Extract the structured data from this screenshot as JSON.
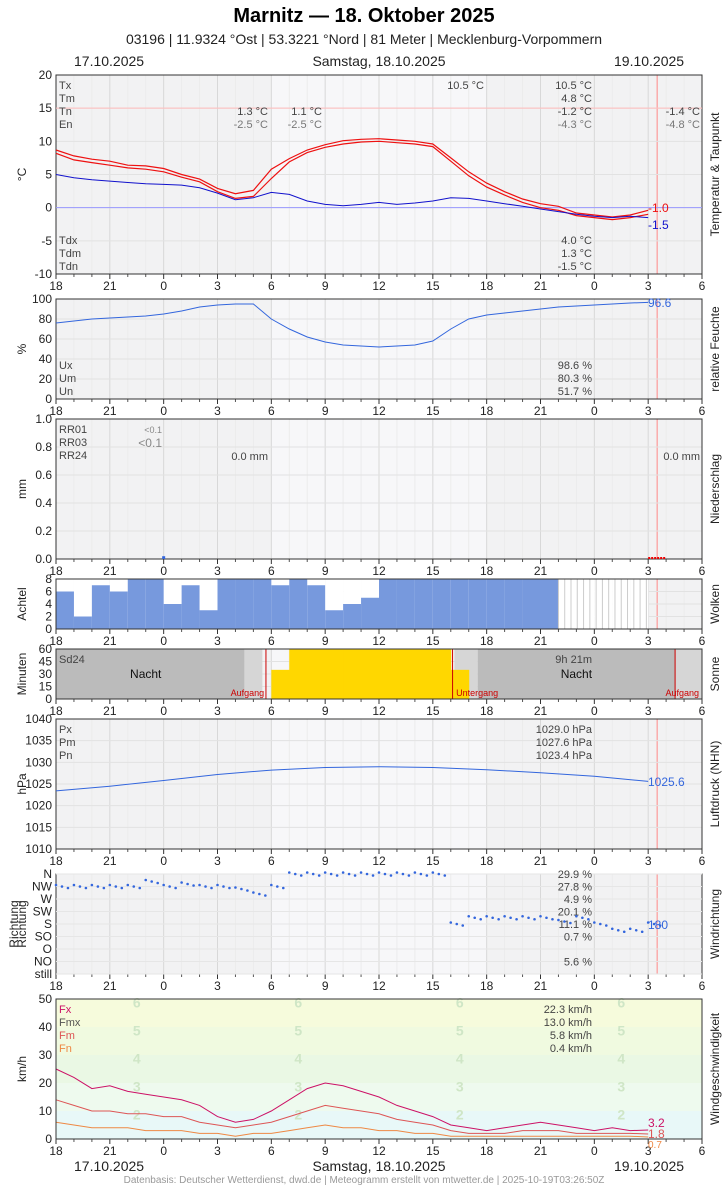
{
  "header": {
    "title": "Marnitz  —  18. Oktober 2025",
    "subtitle": "03196  |  11.9324 °Ost  |  53.3221 °Nord  |  81 Meter  |  Mecklenburg-Vorpommern",
    "date_left": "17.10.2025",
    "date_center": "Samstag, 18.10.2025",
    "date_right": "19.10.2025"
  },
  "footer": {
    "text": "Datenbasis: Deutscher Wetterdienst, dwd.de | Meteogramm erstellt von mtwetter.de | 2025-10-19T03:26:50Z",
    "date_left": "17.10.2025",
    "date_center": "Samstag, 18.10.2025",
    "date_right": "19.10.2025"
  },
  "colors": {
    "temp_red": "#ee1111",
    "dew_blue": "#1111cc",
    "line_blue": "#3366dd",
    "cloud_blue": "#7799dd",
    "sun_yellow": "#ffd700",
    "night_gray": "#bbbbbb",
    "wind_fx": "#cc1166",
    "wind_fm": "#dd5555",
    "wind_fn": "#ee8844"
  },
  "x_axis": {
    "tick_labels": [
      "18",
      "21",
      "0",
      "3",
      "6",
      "9",
      "12",
      "15",
      "18",
      "21",
      "0",
      "3",
      "6"
    ],
    "tick_hours": [
      0,
      3,
      6,
      9,
      12,
      15,
      18,
      21,
      24,
      27,
      30,
      33,
      36
    ],
    "now_hour": 33.5
  },
  "chart_data": [
    {
      "type": "line",
      "panel": "temperature",
      "ylabel": "°C",
      "side_label": "Temperatur & Taupunkt",
      "ylim": [
        -10,
        20
      ],
      "yticks": [
        "20",
        "15",
        "10",
        "5",
        "0",
        "-5",
        "-10"
      ],
      "legend_top": [
        "Tx",
        "Tm",
        "Tn",
        "En"
      ],
      "legend_bottom": [
        "Tdx",
        "Tdm",
        "Tdn"
      ],
      "annotations": [
        {
          "text": "10.5 °C",
          "col": "day1"
        },
        {
          "text": "1.3 °C",
          "col": "night1"
        },
        {
          "text": "-2.5 °C",
          "col": "night1"
        },
        {
          "text": "1.1 °C",
          "col": "night1b"
        },
        {
          "text": "-2.5 °C",
          "col": "night1b"
        }
      ],
      "stats": {
        "Tx": "10.5 °C",
        "Tm": "4.8 °C",
        "Tn": "-1.2 °C",
        "En": "-4.3 °C",
        "Tdx": "4.0 °C",
        "Tdm": "1.3 °C",
        "Tdn": "-1.5 °C"
      },
      "right_stats": {
        "Tn": "-1.4 °C",
        "En": "-4.8 °C"
      },
      "series": [
        {
          "name": "Tx",
          "x": [
            0,
            1,
            2,
            3,
            4,
            5,
            6,
            7,
            8,
            9,
            10,
            11,
            12,
            13,
            14,
            15,
            16,
            17,
            18,
            19,
            20,
            21,
            22,
            23,
            24,
            25,
            26,
            27,
            28,
            29,
            30,
            31,
            32,
            33
          ],
          "values": [
            8.7,
            7.8,
            7.3,
            7.0,
            6.4,
            6.3,
            5.9,
            5.0,
            4.3,
            2.9,
            2.1,
            2.6,
            5.8,
            7.4,
            8.7,
            9.5,
            10.1,
            10.3,
            10.4,
            10.2,
            10.0,
            9.6,
            7.5,
            5.4,
            3.7,
            2.4,
            1.3,
            0.6,
            0.2,
            -0.8,
            -1.1,
            -1.4,
            -1.1,
            -0.4
          ]
        },
        {
          "name": "Tn",
          "x": [
            0,
            1,
            2,
            3,
            4,
            5,
            6,
            7,
            8,
            9,
            10,
            11,
            12,
            13,
            14,
            15,
            16,
            17,
            18,
            19,
            20,
            21,
            22,
            23,
            24,
            25,
            26,
            27,
            28,
            29,
            30,
            31,
            32,
            33
          ],
          "values": [
            8.2,
            7.2,
            6.8,
            6.4,
            6.0,
            5.8,
            5.4,
            4.6,
            3.9,
            2.4,
            1.4,
            1.7,
            4.4,
            6.9,
            8.3,
            9.1,
            9.6,
            9.9,
            10.0,
            9.8,
            9.6,
            9.2,
            7.0,
            4.8,
            3.1,
            1.9,
            0.8,
            0.0,
            -0.4,
            -1.2,
            -1.5,
            -1.8,
            -1.5,
            -1.0
          ]
        },
        {
          "name": "Td",
          "x": [
            0,
            1,
            2,
            3,
            4,
            5,
            6,
            7,
            8,
            9,
            10,
            11,
            12,
            13,
            14,
            15,
            16,
            17,
            18,
            19,
            20,
            21,
            22,
            23,
            24,
            25,
            26,
            27,
            28,
            29,
            30,
            31,
            32,
            33
          ],
          "values": [
            5.0,
            4.5,
            4.2,
            4.0,
            3.8,
            3.6,
            3.5,
            3.4,
            3.0,
            2.2,
            1.2,
            1.5,
            2.3,
            2.0,
            1.0,
            0.5,
            0.3,
            0.5,
            0.8,
            0.5,
            0.7,
            1.0,
            1.5,
            1.4,
            1.0,
            0.6,
            0.2,
            -0.2,
            -0.6,
            -1.0,
            -1.3,
            -1.5,
            -1.3,
            -1.5
          ]
        }
      ],
      "end_labels": [
        "-1.0",
        "-1.5"
      ]
    },
    {
      "type": "line",
      "panel": "humidity",
      "ylabel": "%",
      "side_label": "relative Feuchte",
      "ylim": [
        0,
        100
      ],
      "yticks": [
        "100",
        "80",
        "60",
        "40",
        "20",
        "0"
      ],
      "legend": [
        "Ux",
        "Um",
        "Un"
      ],
      "stats": {
        "Ux": "98.6 %",
        "Um": "80.3 %",
        "Un": "51.7 %"
      },
      "series": [
        {
          "name": "U",
          "x": [
            0,
            1,
            2,
            3,
            4,
            5,
            6,
            7,
            8,
            9,
            10,
            11,
            12,
            13,
            14,
            15,
            16,
            17,
            18,
            19,
            20,
            21,
            22,
            23,
            24,
            25,
            26,
            27,
            28,
            29,
            30,
            31,
            32,
            33
          ],
          "values": [
            76,
            78,
            80,
            81,
            82,
            83,
            85,
            88,
            92,
            94,
            95,
            95,
            80,
            70,
            62,
            57,
            54,
            53,
            52,
            53,
            54,
            58,
            70,
            80,
            84,
            86,
            88,
            90,
            92,
            93,
            94,
            95,
            96,
            96.6
          ]
        }
      ],
      "end_labels": [
        "96.6"
      ]
    },
    {
      "type": "bar",
      "panel": "precipitation",
      "ylabel": "mm",
      "side_label": "Niederschlag",
      "ylim": [
        0,
        1.0
      ],
      "yticks": [
        "1.0",
        "0.8",
        "0.6",
        "0.4",
        "0.2",
        "0.0"
      ],
      "legend": [
        "RR01",
        "RR03",
        "RR24"
      ],
      "annotations": [
        "<0.1",
        "<0.1",
        "0.0 mm",
        "0.0 mm"
      ],
      "x": [
        6
      ],
      "values": [
        0.02
      ]
    },
    {
      "type": "bar",
      "panel": "clouds",
      "ylabel": "Achtel",
      "side_label": "Wolken",
      "ylim": [
        0,
        8
      ],
      "yticks": [
        "8",
        "6",
        "4",
        "2",
        "0"
      ],
      "x": [
        0,
        1,
        2,
        3,
        4,
        5,
        6,
        7,
        8,
        9,
        10,
        11,
        12,
        13,
        14,
        15,
        16,
        17,
        18,
        19,
        20,
        21,
        22,
        23,
        24,
        25,
        26,
        27,
        28,
        29,
        30,
        31,
        32
      ],
      "values": [
        6,
        2,
        7,
        6,
        8,
        8,
        4,
        7,
        3,
        8,
        8,
        8,
        7,
        8,
        7,
        3,
        4,
        5,
        8,
        8,
        8,
        8,
        8,
        8,
        8,
        8,
        8,
        8,
        0,
        0,
        0,
        0,
        0
      ]
    },
    {
      "type": "bar",
      "panel": "sunshine",
      "ylabel": "Minuten",
      "side_label": "Sonne",
      "ylim": [
        0,
        60
      ],
      "yticks": [
        "60",
        "45",
        "30",
        "15",
        "0"
      ],
      "legend": [
        "Sd24"
      ],
      "stats": {
        "Sd24": "9h 21m"
      },
      "labels": [
        "Nacht",
        "Nacht",
        "Aufgang",
        "Untergang",
        "Aufgang"
      ],
      "x": [
        12,
        13,
        14,
        15,
        16,
        17,
        18,
        19,
        20,
        21,
        22
      ],
      "values": [
        35,
        60,
        60,
        60,
        60,
        60,
        60,
        60,
        60,
        60,
        35
      ]
    },
    {
      "type": "line",
      "panel": "pressure",
      "ylabel": "hPa",
      "side_label": "Luftdruck (NHN)",
      "ylim": [
        1010,
        1040
      ],
      "yticks": [
        "1040",
        "1035",
        "1030",
        "1025",
        "1020",
        "1015",
        "1010"
      ],
      "legend": [
        "Px",
        "Pm",
        "Pn"
      ],
      "stats": {
        "Px": "1029.0 hPa",
        "Pm": "1027.6 hPa",
        "Pn": "1023.4 hPa"
      },
      "series": [
        {
          "name": "P",
          "x": [
            0,
            3,
            6,
            9,
            12,
            15,
            18,
            21,
            24,
            27,
            30,
            33
          ],
          "values": [
            1023.4,
            1024.5,
            1025.8,
            1027.2,
            1028.2,
            1028.8,
            1029.0,
            1028.8,
            1028.3,
            1027.6,
            1026.8,
            1025.6
          ]
        }
      ],
      "end_labels": [
        "1025.6"
      ]
    },
    {
      "type": "scatter",
      "panel": "wind_direction",
      "ylabel": "Richtung",
      "side_label": "Windrichtung",
      "categories": [
        "N",
        "NW",
        "W",
        "SW",
        "S",
        "SO",
        "O",
        "NO",
        "still"
      ],
      "stats": [
        "29.9 %",
        "27.8 %",
        "4.9 %",
        "20.1 %",
        "11.1 %",
        "0.7 %",
        "",
        "5.6 %",
        ""
      ],
      "x": [
        0,
        1,
        2,
        3,
        4,
        5,
        6,
        7,
        8,
        9,
        10,
        11,
        12,
        13,
        14,
        15,
        16,
        17,
        18,
        19,
        20,
        21,
        22,
        23,
        24,
        25,
        26,
        27,
        28,
        29,
        30,
        31,
        32,
        33
      ],
      "values": [
        1,
        1,
        1,
        1,
        1,
        0.6,
        1,
        0.8,
        1,
        1,
        1.2,
        1.6,
        1,
        0,
        0,
        0,
        0,
        0,
        0,
        0,
        0,
        0,
        4,
        3.5,
        3.5,
        3.5,
        3.5,
        3.5,
        3.8,
        3.5,
        4,
        4.5,
        4.5,
        4
      ]
    },
    {
      "type": "line",
      "panel": "wind_speed",
      "ylabel": "km/h",
      "side_label": "Windgeschwindigkeit",
      "ylim": [
        0,
        50
      ],
      "yticks": [
        "50",
        "40",
        "30",
        "20",
        "10",
        "0"
      ],
      "legend": [
        "Fx",
        "Fmx",
        "Fm",
        "Fn"
      ],
      "stats": {
        "Fx": "22.3 km/h",
        "Fmx": "13.0 km/h",
        "Fm": "5.8 km/h",
        "Fn": "0.4 km/h"
      },
      "beaufort": [
        "6",
        "5",
        "4",
        "3",
        "2"
      ],
      "series": [
        {
          "name": "Fx",
          "x": [
            0,
            1,
            2,
            3,
            4,
            5,
            6,
            7,
            8,
            9,
            10,
            11,
            12,
            13,
            14,
            15,
            16,
            17,
            18,
            19,
            20,
            21,
            22,
            23,
            24,
            25,
            26,
            27,
            28,
            29,
            30,
            31,
            32,
            33
          ],
          "values": [
            25,
            22,
            18,
            19,
            17,
            16,
            15,
            14,
            12,
            8,
            6,
            7,
            10,
            14,
            18,
            20,
            19,
            17,
            15,
            12,
            10,
            8,
            5,
            4,
            3,
            4,
            5,
            6,
            5,
            4,
            3,
            4,
            3,
            3.2
          ]
        },
        {
          "name": "Fm",
          "x": [
            0,
            1,
            2,
            3,
            4,
            5,
            6,
            7,
            8,
            9,
            10,
            11,
            12,
            13,
            14,
            15,
            16,
            17,
            18,
            19,
            20,
            21,
            22,
            23,
            24,
            25,
            26,
            27,
            28,
            29,
            30,
            31,
            32,
            33
          ],
          "values": [
            14,
            12,
            10,
            10,
            9,
            9,
            8,
            8,
            6,
            5,
            4,
            5,
            6,
            8,
            10,
            12,
            11,
            10,
            9,
            7,
            6,
            5,
            3,
            2,
            2,
            2,
            3,
            3,
            3,
            2,
            2,
            2,
            2,
            1.8
          ]
        },
        {
          "name": "Fn",
          "x": [
            0,
            1,
            2,
            3,
            4,
            5,
            6,
            7,
            8,
            9,
            10,
            11,
            12,
            13,
            14,
            15,
            16,
            17,
            18,
            19,
            20,
            21,
            22,
            23,
            24,
            25,
            26,
            27,
            28,
            29,
            30,
            31,
            32,
            33
          ],
          "values": [
            6,
            5,
            4,
            4,
            4,
            3,
            3,
            3,
            2,
            2,
            1,
            2,
            2,
            3,
            4,
            5,
            4,
            4,
            3,
            3,
            2,
            2,
            1,
            1,
            1,
            1,
            1,
            1,
            1,
            1,
            1,
            1,
            1,
            0.7
          ]
        }
      ],
      "end_labels": [
        "3.2",
        "1.8",
        "0.7"
      ]
    }
  ]
}
